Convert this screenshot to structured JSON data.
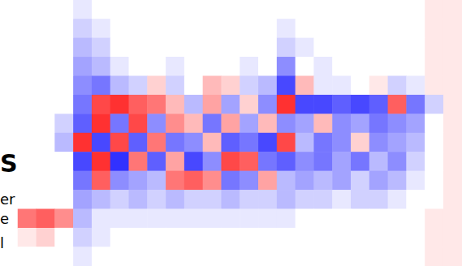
{
  "chart_data": {
    "type": "heatmap",
    "tick_labels": false,
    "grid": false,
    "annotations": [
      "S",
      "er",
      "e",
      "l"
    ],
    "color_range": [
      -1,
      1
    ],
    "colors": [
      "#1a1aff",
      "#ffffff",
      "#ff1a1a"
    ],
    "cells": [
      [
        0,
        0,
        0,
        -0.1,
        0,
        0,
        0,
        0,
        0,
        0,
        0,
        0,
        0,
        0,
        0,
        0,
        0,
        0,
        0,
        0,
        0,
        0,
        0.1,
        0.1
      ],
      [
        0,
        0,
        0,
        -0.2,
        -0.1,
        0,
        0,
        0,
        0,
        0,
        0,
        0,
        0,
        0,
        -0.1,
        0,
        0,
        0,
        0,
        0,
        0,
        0,
        0.1,
        0.1
      ],
      [
        0,
        0,
        0,
        -0.3,
        -0.2,
        0,
        0,
        0,
        0,
        0,
        0,
        0,
        0,
        0,
        -0.2,
        -0.1,
        0,
        0,
        0,
        0,
        0,
        0,
        0.1,
        0.1
      ],
      [
        0,
        0,
        0,
        -0.4,
        -0.3,
        -0.1,
        0,
        0,
        -0.1,
        0,
        0,
        0,
        -0.1,
        0,
        -0.5,
        0,
        -0.1,
        0,
        0,
        0,
        0,
        0,
        0.1,
        0.1
      ],
      [
        0,
        0,
        0,
        -0.5,
        -0.6,
        -0.3,
        -0.2,
        0.2,
        -0.2,
        0,
        0.3,
        0.2,
        -0.2,
        -0.3,
        -0.8,
        0.3,
        -0.1,
        -0.1,
        0,
        0.1,
        -0.2,
        -0.1,
        0.1,
        0.1
      ],
      [
        0,
        0,
        0,
        -0.6,
        0.8,
        0.9,
        0.7,
        0.6,
        0.3,
        -0.3,
        0.4,
        -0.4,
        0.2,
        -0.5,
        0.9,
        -0.8,
        -0.8,
        -0.7,
        -0.8,
        -0.7,
        0.7,
        -0.6,
        -0.2,
        0.1
      ],
      [
        0,
        0,
        -0.2,
        -0.7,
        0.9,
        -0.6,
        0.8,
        -0.5,
        0.5,
        0.3,
        -0.6,
        0.4,
        -0.4,
        0.3,
        -0.5,
        -0.4,
        0.3,
        -0.5,
        -0.4,
        -0.6,
        -0.5,
        -0.4,
        0,
        0.1
      ],
      [
        0,
        0,
        -0.3,
        0.9,
        -0.8,
        0.8,
        -0.7,
        0.6,
        -0.6,
        -0.5,
        0.3,
        -0.7,
        -0.6,
        -0.8,
        0.8,
        -0.3,
        -0.6,
        -0.5,
        0.2,
        -0.5,
        -0.4,
        -0.3,
        0,
        0.1
      ],
      [
        0,
        0,
        0,
        -0.8,
        0.9,
        -0.9,
        0.6,
        -0.7,
        0.4,
        -0.8,
        -0.5,
        0.8,
        0.7,
        -0.6,
        -0.7,
        -0.5,
        -0.6,
        -0.4,
        -0.6,
        -0.3,
        -0.5,
        -0.2,
        0,
        0.1
      ],
      [
        0,
        0,
        0,
        -0.6,
        0.7,
        -0.5,
        -0.4,
        -0.3,
        0.6,
        0.7,
        0.5,
        -0.6,
        -0.5,
        0.4,
        -0.3,
        -0.4,
        -0.3,
        -0.4,
        -0.2,
        -0.4,
        -0.3,
        -0.1,
        0,
        0.1
      ],
      [
        0,
        0,
        0,
        -0.4,
        -0.3,
        -0.2,
        -0.3,
        -0.2,
        -0.3,
        -0.2,
        -0.2,
        -0.3,
        -0.2,
        -0.2,
        -0.3,
        -0.2,
        -0.2,
        -0.1,
        -0.2,
        -0.2,
        -0.1,
        0,
        0,
        0.1
      ],
      [
        0.6,
        0.7,
        0.5,
        -0.3,
        -0.1,
        -0.1,
        -0.1,
        -0.1,
        -0.1,
        -0.1,
        -0.1,
        -0.1,
        -0.1,
        -0.1,
        -0.1,
        0,
        0,
        0,
        0,
        0,
        0,
        0,
        0.1,
        0.1
      ],
      [
        0.1,
        0.2,
        0,
        -0.2,
        -0.1,
        0,
        0,
        0,
        0,
        0,
        0,
        0,
        0,
        0,
        0,
        0,
        0,
        0,
        0,
        0,
        0,
        0,
        0.1,
        0.1
      ],
      [
        0,
        0,
        0,
        -0.1,
        0,
        0,
        0,
        0,
        0,
        0,
        0,
        0,
        0,
        0,
        0,
        0,
        0,
        0,
        0,
        0,
        0,
        0,
        0.1,
        0.1
      ]
    ]
  }
}
